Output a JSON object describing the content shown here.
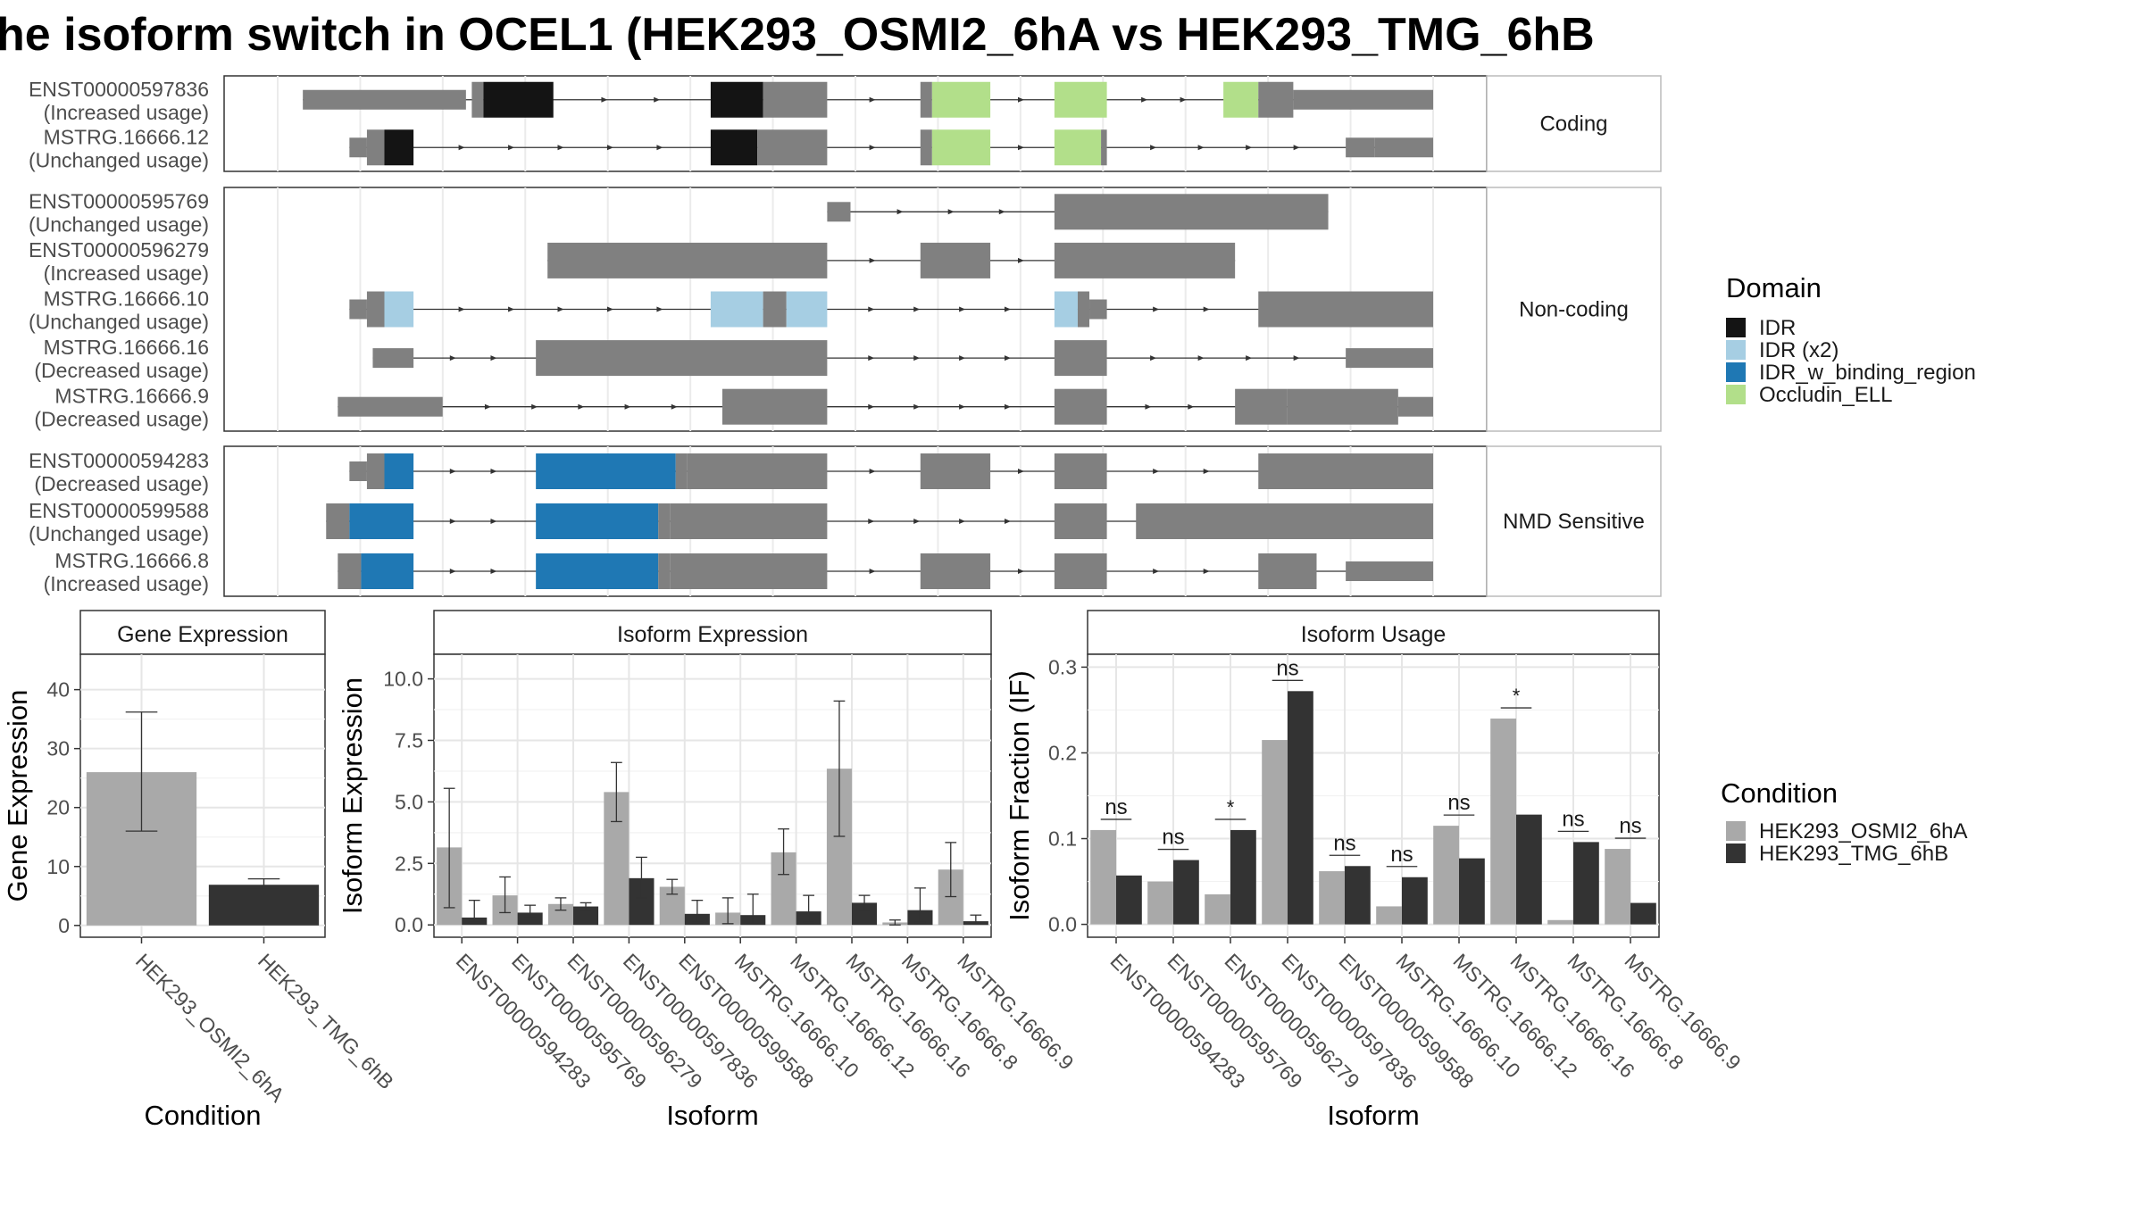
{
  "title": "he isoform switch in OCEL1 (HEK293_OSMI2_6hA vs HEK293_TMG_6hB",
  "transcript_plot": {
    "x_ticks": [
      23.5,
      24,
      25,
      26,
      27,
      28,
      29,
      30,
      31,
      32,
      33,
      34,
      35,
      36,
      37
    ],
    "panels": [
      {
        "label": "Coding",
        "transcripts": [
          {
            "id": "ENST00000597836",
            "usage": "(Increased usage)",
            "exons": [
              [
                3,
                17,
                "utr"
              ],
              [
                17.5,
                18.5,
                "utr"
              ],
              [
                18.5,
                24.5,
                "IDR"
              ],
              [
                38,
                42.5,
                "IDR"
              ],
              [
                42.5,
                48,
                "utr"
              ],
              [
                56,
                57,
                "utr"
              ],
              [
                57,
                62,
                "Occludin_ELL"
              ],
              [
                67.5,
                72,
                "Occludin_ELL"
              ],
              [
                82,
                85,
                "Occludin_ELL"
              ],
              [
                85,
                88,
                "utr"
              ],
              [
                88,
                100,
                "utr"
              ]
            ]
          },
          {
            "id": "MSTRG.16666.12",
            "usage": "(Unchanged usage)",
            "exons": [
              [
                7,
                8.5,
                "utr"
              ],
              [
                8.5,
                10,
                "utr"
              ],
              [
                10,
                12.5,
                "IDR"
              ],
              [
                38,
                42,
                "IDR"
              ],
              [
                42,
                48,
                "utr"
              ],
              [
                56,
                57,
                "utr"
              ],
              [
                57,
                62,
                "Occludin_ELL"
              ],
              [
                67.5,
                71.5,
                "Occludin_ELL"
              ],
              [
                71.5,
                72,
                "utr"
              ],
              [
                92.5,
                95,
                "utr"
              ],
              [
                95,
                100,
                "utr"
              ]
            ]
          }
        ]
      },
      {
        "label": "Non-coding",
        "transcripts": [
          {
            "id": "ENST00000595769",
            "usage": "(Unchanged usage)",
            "exons": [
              [
                48,
                50,
                "utr"
              ],
              [
                67.5,
                91,
                "utr"
              ]
            ]
          },
          {
            "id": "ENST00000596279",
            "usage": "(Increased usage)",
            "exons": [
              [
                24,
                48,
                "utr"
              ],
              [
                56,
                62,
                "utr"
              ],
              [
                67.5,
                83,
                "utr"
              ]
            ]
          },
          {
            "id": "MSTRG.16666.10",
            "usage": "(Unchanged usage)",
            "exons": [
              [
                7,
                8.5,
                "utr"
              ],
              [
                8.5,
                10,
                "utr"
              ],
              [
                10,
                12.5,
                "IDR (x2)"
              ],
              [
                38,
                42.5,
                "IDR (x2)"
              ],
              [
                42.5,
                44.5,
                "utr"
              ],
              [
                44.5,
                48,
                "IDR (x2)"
              ],
              [
                67.5,
                69.5,
                "IDR (x2)"
              ],
              [
                69.5,
                70.5,
                "utr"
              ],
              [
                70.5,
                72,
                "utr"
              ],
              [
                85,
                100,
                "utr"
              ]
            ]
          },
          {
            "id": "MSTRG.16666.16",
            "usage": "(Decreased usage)",
            "exons": [
              [
                9,
                12.5,
                "utr"
              ],
              [
                23,
                48,
                "utr"
              ],
              [
                67.5,
                72,
                "utr"
              ],
              [
                92.5,
                100,
                "utr"
              ]
            ]
          },
          {
            "id": "MSTRG.16666.9",
            "usage": "(Decreased usage)",
            "exons": [
              [
                6,
                15,
                "utr"
              ],
              [
                39,
                48,
                "utr"
              ],
              [
                67.5,
                72,
                "utr"
              ],
              [
                83,
                87.5,
                "utr"
              ],
              [
                87.5,
                97,
                "utr"
              ],
              [
                97,
                100,
                "utr"
              ]
            ]
          }
        ]
      },
      {
        "label": "NMD Sensitive",
        "transcripts": [
          {
            "id": "ENST00000594283",
            "usage": "(Decreased usage)",
            "exons": [
              [
                7,
                8.5,
                "utr"
              ],
              [
                8.5,
                10,
                "utr"
              ],
              [
                10,
                12.5,
                "IDR_w_binding_region"
              ],
              [
                23,
                35,
                "IDR_w_binding_region"
              ],
              [
                35,
                36,
                "utr"
              ],
              [
                36,
                48,
                "utr"
              ],
              [
                56,
                62,
                "utr"
              ],
              [
                67.5,
                72,
                "utr"
              ],
              [
                85,
                100,
                "utr"
              ]
            ]
          },
          {
            "id": "ENST00000599588",
            "usage": "(Unchanged usage)",
            "exons": [
              [
                5,
                7,
                "utr"
              ],
              [
                7,
                12.5,
                "IDR_w_binding_region"
              ],
              [
                23,
                33.5,
                "IDR_w_binding_region"
              ],
              [
                33.5,
                34.5,
                "utr"
              ],
              [
                34.5,
                48,
                "utr"
              ],
              [
                67.5,
                72,
                "utr"
              ],
              [
                74.5,
                100,
                "utr"
              ]
            ]
          },
          {
            "id": "MSTRG.16666.8",
            "usage": "(Increased usage)",
            "exons": [
              [
                6,
                8,
                "utr"
              ],
              [
                8,
                12.5,
                "IDR_w_binding_region"
              ],
              [
                23,
                33.5,
                "IDR_w_binding_region"
              ],
              [
                33.5,
                34.5,
                "utr"
              ],
              [
                34.5,
                48,
                "utr"
              ],
              [
                56,
                62,
                "utr"
              ],
              [
                67.5,
                72,
                "utr"
              ],
              [
                85,
                90,
                "utr"
              ],
              [
                92.5,
                100,
                "utr"
              ]
            ]
          }
        ]
      }
    ]
  },
  "domain_legend": {
    "title": "Domain",
    "items": [
      {
        "label": "IDR",
        "color": "#141414"
      },
      {
        "label": "IDR (x2)",
        "color": "#A6CEE3"
      },
      {
        "label": "IDR_w_binding_region",
        "color": "#1F78B4"
      },
      {
        "label": "Occludin_ELL",
        "color": "#B2DF8A"
      }
    ]
  },
  "condition_legend": {
    "title": "Condition",
    "items": [
      {
        "label": "HEK293_OSMI2_6hA",
        "color": "#A9A9A9"
      },
      {
        "label": "HEK293_TMG_6hB",
        "color": "#333333"
      }
    ]
  },
  "colors": {
    "utr": "#808080",
    "osmi": "#A9A9A9",
    "tmg": "#333333"
  },
  "chart_data": [
    {
      "type": "bar",
      "title": "Gene Expression",
      "xlabel": "Condition",
      "ylabel": "Gene Expression",
      "ylim": [
        -2,
        46
      ],
      "yticks": [
        0,
        10,
        20,
        30,
        40
      ],
      "ytick_labels": [
        "0",
        "10",
        "20",
        "30",
        "40"
      ],
      "categories": [
        "HEK293_OSMI2_6hA",
        "HEK293_TMG_6hB"
      ],
      "values": [
        26,
        6.9
      ],
      "error_low": [
        16,
        6.2
      ],
      "error_high": [
        36.2,
        7.9
      ],
      "grid": true
    },
    {
      "type": "bar",
      "title": "Isoform Expression",
      "xlabel": "Isoform",
      "ylabel": "Isoform Expression",
      "ylim": [
        -0.5,
        11
      ],
      "yticks": [
        0,
        2.5,
        5,
        7.5,
        10
      ],
      "ytick_labels": [
        "0.0",
        "2.5",
        "5.0",
        "7.5",
        "10.0"
      ],
      "categories": [
        "ENST00000594283",
        "ENST00000595769",
        "ENST00000596279",
        "ENST00000597836",
        "ENST00000599588",
        "MSTRG.16666.10",
        "MSTRG.16666.12",
        "MSTRG.16666.16",
        "MSTRG.16666.8",
        "MSTRG.16666.9"
      ],
      "series": [
        {
          "name": "HEK293_OSMI2_6hA",
          "values": [
            3.15,
            1.2,
            0.85,
            5.4,
            1.55,
            0.5,
            2.95,
            6.35,
            0.1,
            2.25
          ],
          "error_low": [
            0.7,
            0.5,
            0.6,
            4.2,
            1.25,
            0.05,
            2.05,
            3.6,
            0.0,
            1.15
          ],
          "error_high": [
            5.55,
            1.95,
            1.1,
            6.6,
            1.85,
            1.1,
            3.9,
            9.1,
            0.2,
            3.35
          ]
        },
        {
          "name": "HEK293_TMG_6hB",
          "values": [
            0.3,
            0.5,
            0.75,
            1.9,
            0.45,
            0.4,
            0.55,
            0.9,
            0.6,
            0.15
          ],
          "error_low": [
            0.1,
            0.3,
            0.6,
            1.1,
            0.1,
            0.05,
            0.1,
            0.6,
            0.1,
            0.05
          ],
          "error_high": [
            1.0,
            0.8,
            0.9,
            2.75,
            1.0,
            1.25,
            1.2,
            1.2,
            1.5,
            0.4
          ]
        }
      ],
      "grid": true
    },
    {
      "type": "bar",
      "title": "Isoform Usage",
      "xlabel": "Isoform",
      "ylabel": "Isoform Fraction (IF)",
      "ylim": [
        -0.015,
        0.315
      ],
      "yticks": [
        0,
        0.1,
        0.2,
        0.3
      ],
      "ytick_labels": [
        "0.0",
        "0.1",
        "0.2",
        "0.3"
      ],
      "categories": [
        "ENST00000594283",
        "ENST00000595769",
        "ENST00000596279",
        "ENST00000597836",
        "ENST00000599588",
        "MSTRG.16666.10",
        "MSTRG.16666.12",
        "MSTRG.16666.16",
        "MSTRG.16666.8",
        "MSTRG.16666.9"
      ],
      "series": [
        {
          "name": "HEK293_OSMI2_6hA",
          "values": [
            0.11,
            0.05,
            0.035,
            0.215,
            0.062,
            0.021,
            0.115,
            0.24,
            0.005,
            0.088
          ]
        },
        {
          "name": "HEK293_TMG_6hB",
          "values": [
            0.057,
            0.075,
            0.11,
            0.272,
            0.068,
            0.055,
            0.077,
            0.128,
            0.096,
            0.025
          ]
        }
      ],
      "significance": [
        "ns",
        "ns",
        "*",
        "ns",
        "ns",
        "ns",
        "ns",
        "*",
        "ns",
        "ns"
      ],
      "grid": true
    }
  ]
}
